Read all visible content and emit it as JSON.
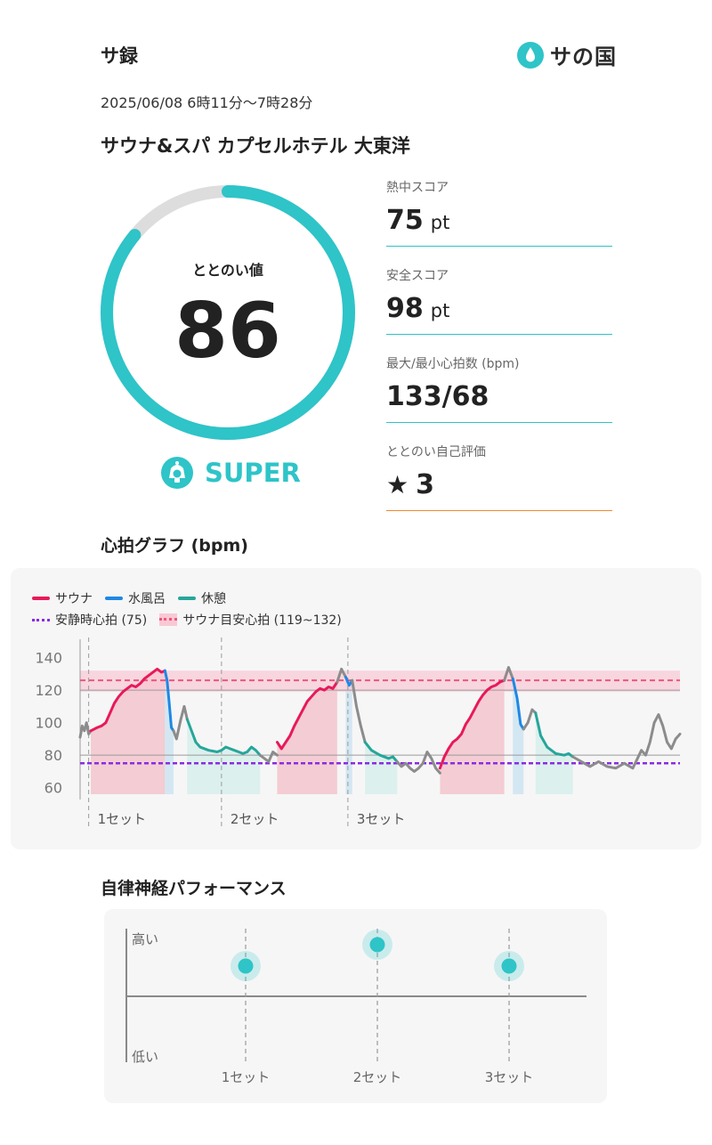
{
  "header": {
    "app_title": "サ録",
    "logo_text": "サの国",
    "logo_icon": "water-drop-icon",
    "datetime": "2025/06/08 6時11分〜7時28分",
    "facility": "サウナ&スパ カプセルホテル 大東洋"
  },
  "totonoi": {
    "label": "ととのい値",
    "value": "86",
    "score": 86,
    "max": 100,
    "rank": "SUPER",
    "rank_icon": "bell-mascot-icon",
    "accent_color": "#2ec4c8",
    "track_color": "#dddddd"
  },
  "stats": [
    {
      "label": "熱中スコア",
      "value": "75",
      "unit": "pt"
    },
    {
      "label": "安全スコア",
      "value": "98",
      "unit": "pt"
    },
    {
      "label": "最大/最小心拍数 (bpm)",
      "value": "133/68",
      "unit": ""
    },
    {
      "label": "ととのい自己評価",
      "value": "3",
      "unit": "",
      "icon": "star-icon"
    }
  ],
  "heart_rate_section": {
    "title": "心拍グラフ (bpm)"
  },
  "chart_data": {
    "type": "line",
    "legend": [
      {
        "name": "サウナ",
        "color": "#e8195a",
        "style": "line"
      },
      {
        "name": "水風呂",
        "color": "#1e88e5",
        "style": "line"
      },
      {
        "name": "休憩",
        "color": "#26a69a",
        "style": "line"
      },
      {
        "name": "安静時心拍 (75)",
        "color": "#8a2be2",
        "style": "dotted"
      },
      {
        "name": "サウナ目安心拍 (119~132)",
        "color": "#f0557a",
        "style": "band"
      }
    ],
    "y_ticks": [
      "140",
      "120",
      "100",
      "80",
      "60"
    ],
    "ylim": [
      56,
      148
    ],
    "xlim": [
      0,
      100
    ],
    "resting_hr": 75,
    "target_band": [
      119,
      132
    ],
    "target_line": 126,
    "reference_lines": [
      120,
      80
    ],
    "sets": [
      {
        "label": "1セット",
        "start": 2
      },
      {
        "label": "2セット",
        "start": 33
      },
      {
        "label": "3セット",
        "start": 62.5
      }
    ],
    "series": [
      {
        "phase": "other",
        "points": [
          [
            0,
            91
          ],
          [
            0.5,
            98
          ],
          [
            1,
            95
          ],
          [
            1.5,
            100
          ],
          [
            2,
            93
          ],
          [
            2.5,
            95
          ]
        ]
      },
      {
        "phase": "sauna",
        "points": [
          [
            2.5,
            95
          ],
          [
            4,
            97
          ],
          [
            5,
            98
          ],
          [
            6,
            100
          ],
          [
            7,
            106
          ],
          [
            8,
            112
          ],
          [
            9,
            116
          ],
          [
            10,
            119
          ],
          [
            11,
            121
          ],
          [
            12,
            123
          ],
          [
            13,
            122
          ],
          [
            14,
            124
          ],
          [
            15,
            127
          ],
          [
            16,
            129
          ],
          [
            17,
            131
          ],
          [
            18,
            133
          ],
          [
            19,
            131
          ],
          [
            19.8,
            132
          ]
        ]
      },
      {
        "phase": "cold",
        "points": [
          [
            19.8,
            132
          ],
          [
            20.3,
            126
          ],
          [
            20.8,
            112
          ],
          [
            21.3,
            97
          ],
          [
            21.8,
            95
          ]
        ]
      },
      {
        "phase": "other",
        "points": [
          [
            21.8,
            95
          ],
          [
            22.5,
            90
          ],
          [
            23.5,
            102
          ],
          [
            24.3,
            110
          ],
          [
            25,
            102
          ]
        ]
      },
      {
        "phase": "rest",
        "points": [
          [
            25,
            102
          ],
          [
            26,
            95
          ],
          [
            27,
            88
          ],
          [
            28,
            85
          ],
          [
            30,
            83
          ],
          [
            32,
            82
          ],
          [
            33,
            83
          ],
          [
            34,
            85
          ],
          [
            35,
            84
          ],
          [
            36,
            83
          ],
          [
            37,
            82
          ],
          [
            38,
            81
          ],
          [
            39,
            82
          ],
          [
            40,
            85
          ],
          [
            41,
            83
          ],
          [
            42,
            80
          ]
        ]
      },
      {
        "phase": "other",
        "points": [
          [
            42,
            80
          ],
          [
            43,
            78
          ],
          [
            44,
            76
          ],
          [
            45,
            82
          ],
          [
            46,
            80
          ]
        ]
      },
      {
        "phase": "sauna",
        "points": [
          [
            46,
            88
          ],
          [
            47,
            84
          ],
          [
            48,
            88
          ],
          [
            49,
            92
          ],
          [
            50,
            98
          ],
          [
            51,
            103
          ],
          [
            52,
            108
          ],
          [
            53,
            113
          ],
          [
            54,
            116
          ],
          [
            55,
            119
          ],
          [
            56,
            121
          ],
          [
            57,
            120
          ],
          [
            58,
            122
          ],
          [
            59,
            121
          ],
          [
            60,
            125
          ]
        ]
      },
      {
        "phase": "other",
        "points": [
          [
            60,
            125
          ],
          [
            61,
            133
          ],
          [
            62,
            128
          ]
        ]
      },
      {
        "phase": "cold",
        "points": [
          [
            62,
            128
          ],
          [
            62.8,
            123
          ],
          [
            63.5,
            126
          ]
        ]
      },
      {
        "phase": "other",
        "points": [
          [
            63.5,
            126
          ],
          [
            64.5,
            110
          ],
          [
            65.5,
            98
          ],
          [
            66.5,
            88
          ]
        ]
      },
      {
        "phase": "rest",
        "points": [
          [
            66.5,
            88
          ],
          [
            68,
            83
          ],
          [
            70,
            80
          ],
          [
            72,
            78
          ],
          [
            73,
            79
          ],
          [
            74,
            76
          ]
        ]
      },
      {
        "phase": "other",
        "points": [
          [
            74,
            76
          ],
          [
            75,
            73
          ],
          [
            76,
            75
          ],
          [
            77,
            72
          ],
          [
            78,
            70
          ],
          [
            79,
            72
          ],
          [
            80,
            75
          ],
          [
            81,
            82
          ],
          [
            82,
            78
          ],
          [
            83,
            72
          ],
          [
            84,
            69
          ]
        ]
      },
      {
        "phase": "sauna",
        "points": [
          [
            84,
            72
          ],
          [
            85,
            79
          ],
          [
            86,
            84
          ],
          [
            87,
            88
          ],
          [
            88,
            90
          ],
          [
            89,
            93
          ],
          [
            90,
            99
          ],
          [
            91,
            103
          ],
          [
            92,
            108
          ],
          [
            93,
            113
          ],
          [
            94,
            117
          ],
          [
            95,
            120
          ],
          [
            96,
            122
          ],
          [
            97,
            123
          ],
          [
            98,
            125
          ],
          [
            99,
            126
          ]
        ]
      },
      {
        "phase": "other",
        "points": [
          [
            99,
            126
          ],
          [
            100,
            134
          ],
          [
            101,
            127
          ]
        ]
      },
      {
        "phase": "cold",
        "points": [
          [
            101,
            127
          ],
          [
            102,
            115
          ],
          [
            102.8,
            99
          ],
          [
            103.5,
            96
          ]
        ]
      },
      {
        "phase": "other",
        "points": [
          [
            103.5,
            96
          ],
          [
            104.5,
            100
          ],
          [
            105.5,
            108
          ],
          [
            106.3,
            106
          ]
        ]
      },
      {
        "phase": "rest",
        "points": [
          [
            106.3,
            106
          ],
          [
            107.5,
            92
          ],
          [
            109,
            85
          ],
          [
            111,
            81
          ],
          [
            113,
            80
          ],
          [
            114,
            81
          ],
          [
            115,
            79
          ]
        ]
      },
      {
        "phase": "other",
        "points": [
          [
            115,
            79
          ],
          [
            117,
            76
          ],
          [
            119,
            73
          ],
          [
            121,
            76
          ],
          [
            123,
            73
          ],
          [
            125,
            72
          ],
          [
            127,
            75
          ],
          [
            129,
            72
          ],
          [
            131,
            83
          ],
          [
            132,
            80
          ],
          [
            133,
            88
          ],
          [
            134,
            100
          ],
          [
            135,
            105
          ],
          [
            136,
            98
          ],
          [
            137,
            88
          ],
          [
            138,
            84
          ],
          [
            139,
            90
          ],
          [
            140,
            93
          ]
        ]
      }
    ],
    "x_domain": [
      0,
      140
    ]
  },
  "autonomic": {
    "title": "自律神経パフォーマンス",
    "y_high": "高い",
    "y_low": "低い",
    "points": [
      {
        "set": "1セット",
        "level": 0.72
      },
      {
        "set": "2セット",
        "level": 0.88
      },
      {
        "set": "3セット",
        "level": 0.72
      }
    ]
  }
}
